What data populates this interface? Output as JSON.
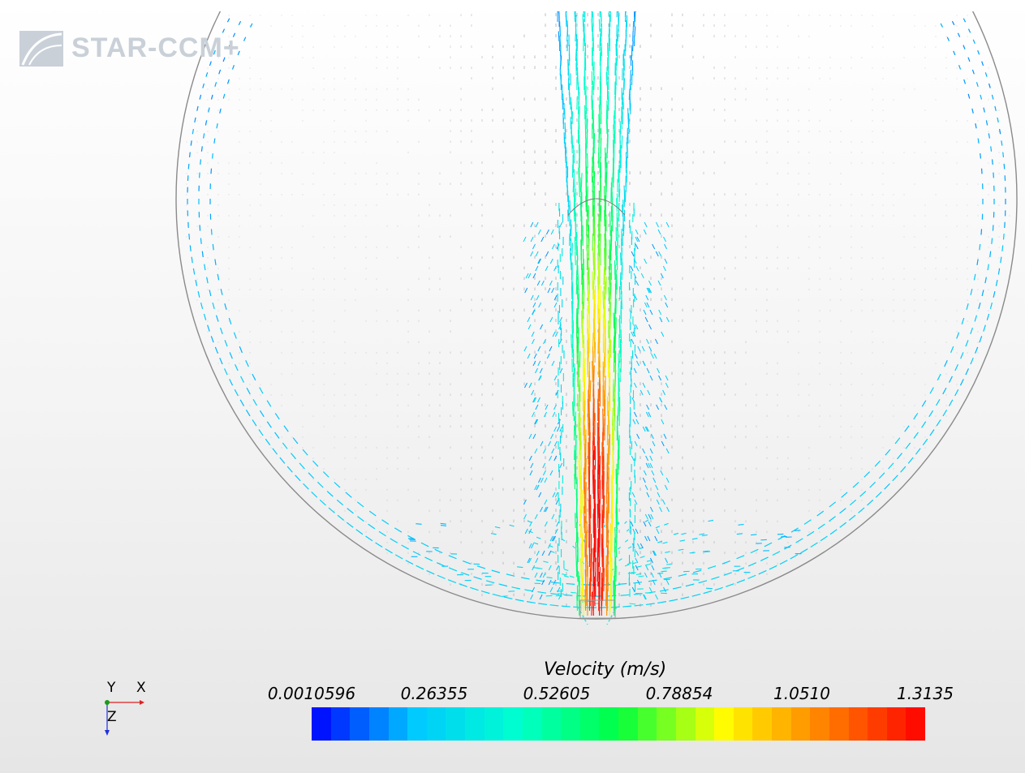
{
  "logo": {
    "text": "STAR-CCM+",
    "color": "#c9d0d8"
  },
  "triad": {
    "y_label": "Y",
    "x_label": "X",
    "z_label": "Z"
  },
  "chart_data": {
    "type": "vector-field",
    "title": "Velocity (m/s)",
    "scalar_range": [
      0.0010596,
      1.3135
    ],
    "legend": {
      "title": "Velocity (m/s)",
      "tick_labels": [
        "0.0010596",
        "0.26355",
        "0.52605",
        "0.78854",
        "1.0510",
        "1.3135"
      ],
      "segments": 32,
      "colormap": [
        "#0000ff",
        "#00c8ff",
        "#00ffd0",
        "#00ff40",
        "#ffff00",
        "#ff8000",
        "#ff0000"
      ]
    },
    "grid": false
  }
}
